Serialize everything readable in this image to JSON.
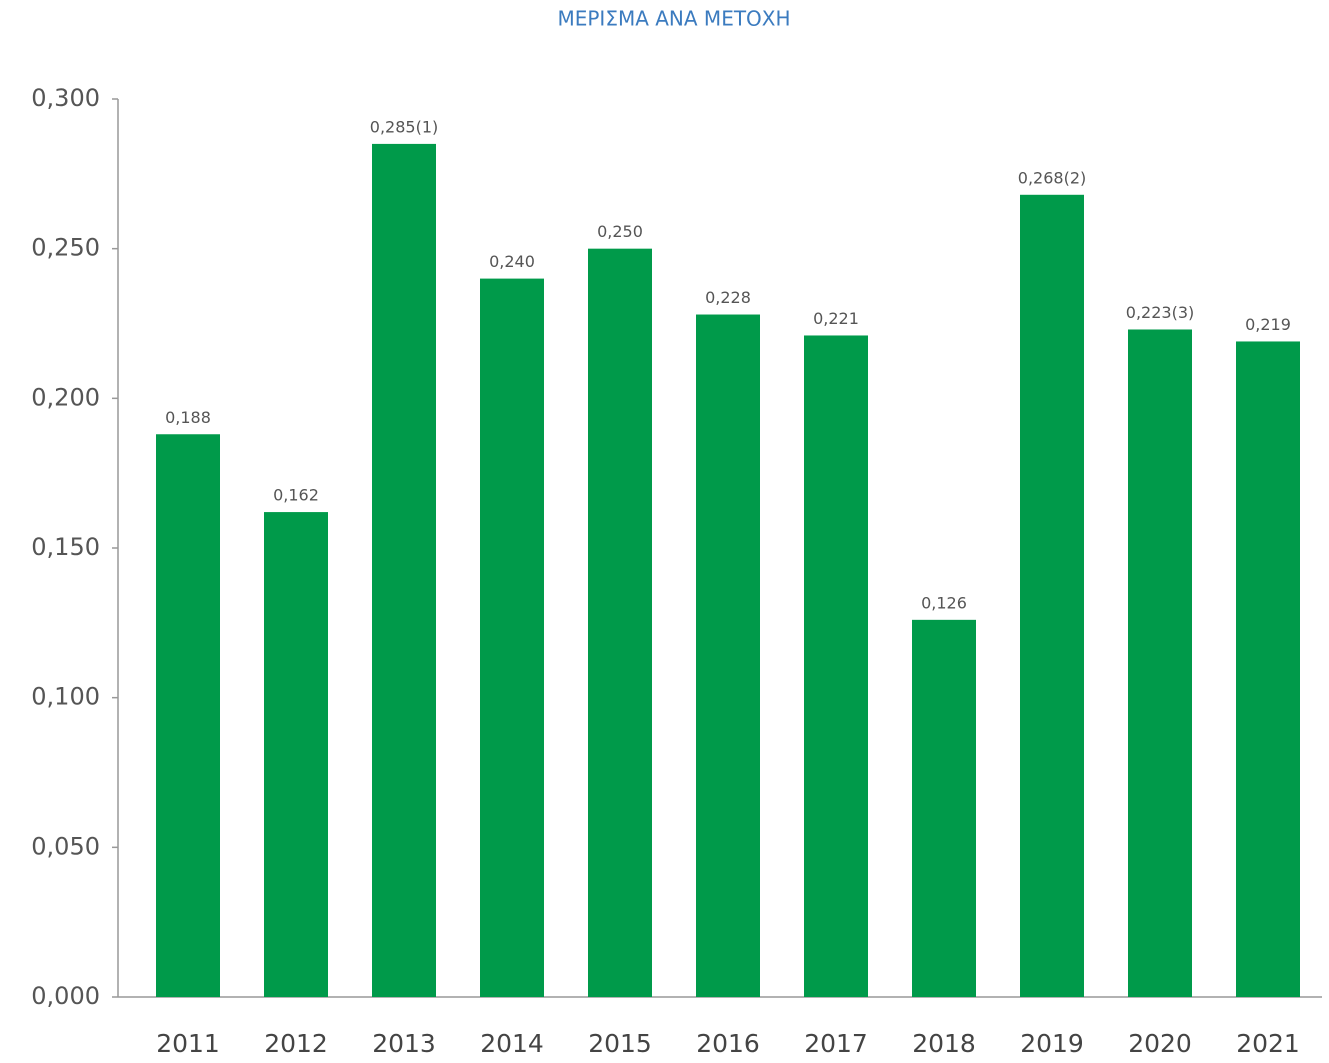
{
  "chart_data": {
    "type": "bar",
    "title": "ΜΕΡΙΣΜΑ ΑΝΑ ΜΕΤΟΧΗ",
    "categories": [
      "2011",
      "2012",
      "2013",
      "2014",
      "2015",
      "2016",
      "2017",
      "2018",
      "2019",
      "2020",
      "2021"
    ],
    "values": [
      0.188,
      0.162,
      0.285,
      0.24,
      0.25,
      0.228,
      0.221,
      0.126,
      0.268,
      0.223,
      0.219
    ],
    "value_labels": [
      "0,188",
      "0,162",
      "0,285(1)",
      "0,240",
      "0,250",
      "0,228",
      "0,221",
      "0,126",
      "0,268(2)",
      "0,223(3)",
      "0,219"
    ],
    "color": "#009a4a",
    "ylim": [
      0,
      0.3
    ],
    "yticks": [
      {
        "value": 0,
        "label": "0,000"
      },
      {
        "value": 0.05,
        "label": "0,050"
      },
      {
        "value": 0.1,
        "label": "0,100"
      },
      {
        "value": 0.15,
        "label": "0,150"
      },
      {
        "value": 0.2,
        "label": "0,200"
      },
      {
        "value": 0.25,
        "label": "0,250"
      },
      {
        "value": 0.3,
        "label": "0,300"
      }
    ],
    "grid": false
  }
}
